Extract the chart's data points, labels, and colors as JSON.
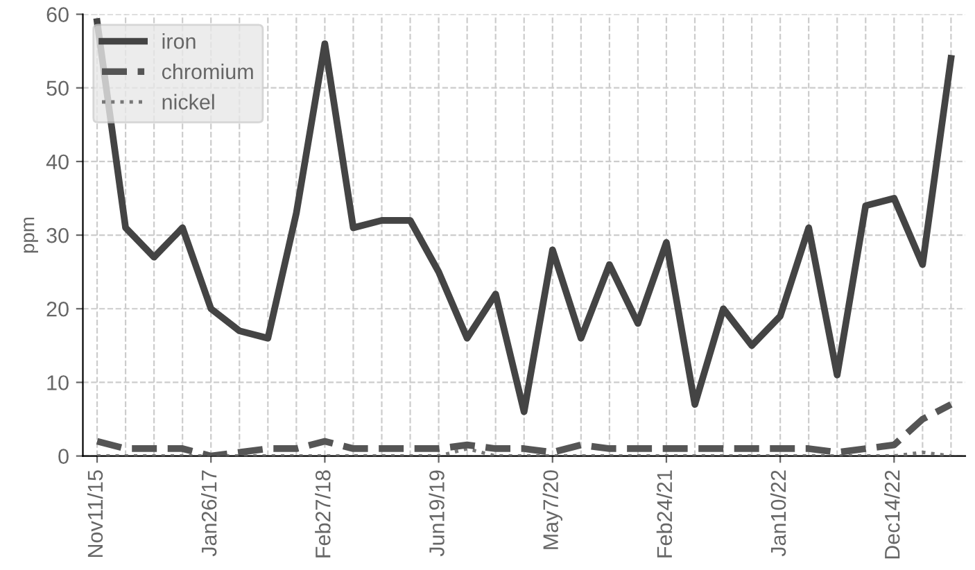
{
  "chart_data": {
    "type": "line",
    "ylabel": "ppm",
    "categories": [
      "Nov11/15",
      null,
      null,
      null,
      "Jan26/17",
      null,
      null,
      null,
      "Feb27/18",
      null,
      null,
      null,
      "Jun19/19",
      null,
      null,
      null,
      "May7/20",
      null,
      null,
      null,
      "Feb24/21",
      null,
      null,
      null,
      "Jan10/22",
      null,
      null,
      null,
      "Dec14/22",
      null,
      null
    ],
    "series": [
      {
        "name": "iron",
        "color": "#444444",
        "line_style": "solid",
        "values": [
          59,
          31,
          27,
          31,
          20,
          17,
          16,
          33,
          56,
          31,
          32,
          32,
          25,
          16,
          22,
          6,
          28,
          16,
          26,
          18,
          29,
          7,
          20,
          15,
          19,
          31,
          11,
          34,
          35,
          26,
          54
        ]
      },
      {
        "name": "chromium",
        "color": "#555555",
        "line_style": "dashed",
        "values": [
          2,
          1,
          1,
          1,
          0,
          0.5,
          1,
          1,
          2,
          1,
          1,
          1,
          1,
          1.5,
          1,
          1,
          0.5,
          1.5,
          1,
          1,
          1,
          1,
          1,
          1,
          1,
          1,
          0.5,
          1,
          1.5,
          5,
          7
        ]
      },
      {
        "name": "nickel",
        "color": "#777777",
        "line_style": "dotted",
        "values": [
          0,
          0,
          0,
          0,
          0,
          0,
          0,
          0,
          0,
          0,
          0,
          0,
          0,
          1,
          0,
          0,
          0,
          0,
          0,
          0,
          0,
          0,
          0,
          0,
          0,
          0,
          0,
          0,
          0,
          0.5,
          0
        ]
      }
    ],
    "ylim": [
      0,
      60
    ],
    "yticks": [
      0,
      10,
      20,
      30,
      40,
      50,
      60
    ],
    "grid": true,
    "legend": "top left",
    "marker": "none"
  }
}
